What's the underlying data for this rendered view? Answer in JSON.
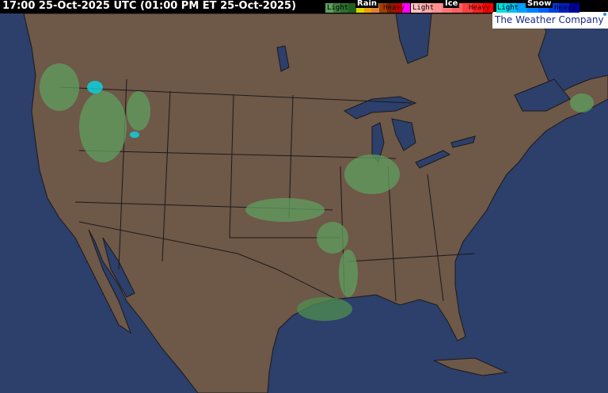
{
  "header": {
    "timestamp": "17:00 25-Oct-2025 UTC  (01:00 PM ET 25-Oct-2025)"
  },
  "legend": {
    "rain": {
      "title": "Rain",
      "light": "Light",
      "heavy": "Heavy",
      "colors": [
        "#5f9f5f",
        "#3f7f3f",
        "#2f6f2f",
        "#1f5f1f",
        "#d8d800",
        "#f0a000",
        "#e08040",
        "#a04000",
        "#802000",
        "#c00000",
        "#ff00ff"
      ]
    },
    "ice": {
      "title": "Ice",
      "light": "Light",
      "heavy": "Heavy",
      "colors": [
        "#ffc0c0",
        "#ffa8a8",
        "#ff9090",
        "#ff7878",
        "#ff6060",
        "#ff4040",
        "#ff2020",
        "#ff0000"
      ]
    },
    "snow": {
      "title": "Snow",
      "light": "Light",
      "heavy": "Heavy",
      "colors": [
        "#00e0e0",
        "#00c0f0",
        "#00a0ff",
        "#0080ff",
        "#0060ff",
        "#0040e0",
        "#0020c0",
        "#0000a0"
      ]
    }
  },
  "brand": {
    "logo_text": "The Weather Company"
  },
  "colors": {
    "ocean": "#2d3f6b",
    "land": "#6e5848",
    "borders": "#1a1a1a",
    "radar_light": "#5f9f5f",
    "snow_light": "#00e0f0"
  }
}
